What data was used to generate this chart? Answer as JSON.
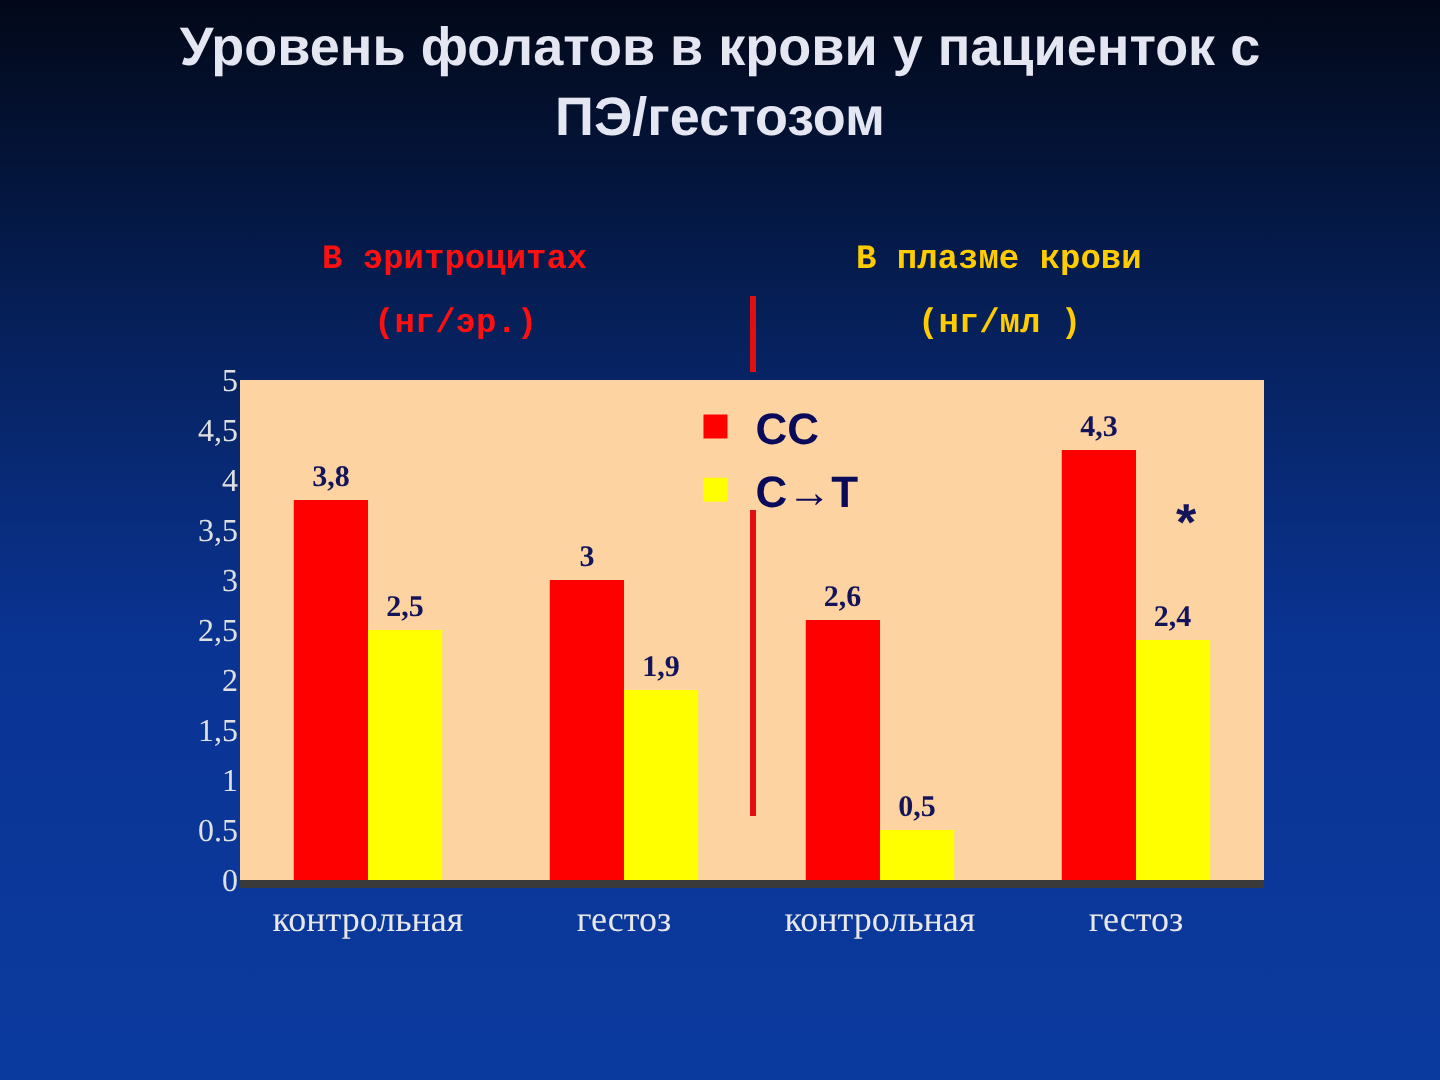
{
  "chart_data": {
    "type": "bar",
    "title": "Уровень фолатов в крови у пациенток с ПЭ/гестозом",
    "categories": [
      "контрольная",
      "гестоз",
      "контрольная",
      "гестоз"
    ],
    "series": [
      {
        "name": "CC",
        "color": "#ff0000",
        "values": [
          3.8,
          3,
          2.6,
          4.3
        ],
        "value_labels": [
          "3,8",
          "3",
          "2,6",
          "4,3"
        ]
      },
      {
        "name": "C→T",
        "color": "#ffff00",
        "values": [
          2.5,
          1.9,
          0.5,
          2.4
        ],
        "value_labels": [
          "2,5",
          "1,9",
          "0,5",
          "2,4"
        ]
      }
    ],
    "ylim": [
      0,
      5
    ],
    "yticks": [
      0,
      0.5,
      1,
      {
        "value": 1.5,
        "label": "1,5"
      },
      2,
      {
        "value": 2.5,
        "label": "2,5"
      },
      3,
      {
        "value": 3.5,
        "label": "3,5"
      },
      4,
      {
        "value": 4.5,
        "label": "4,5"
      },
      5
    ],
    "legend": "top",
    "annotations": [
      "В эритроцитах",
      "(нг/эр.)",
      "В плазме крови",
      "(нг/мл )",
      "*"
    ]
  }
}
